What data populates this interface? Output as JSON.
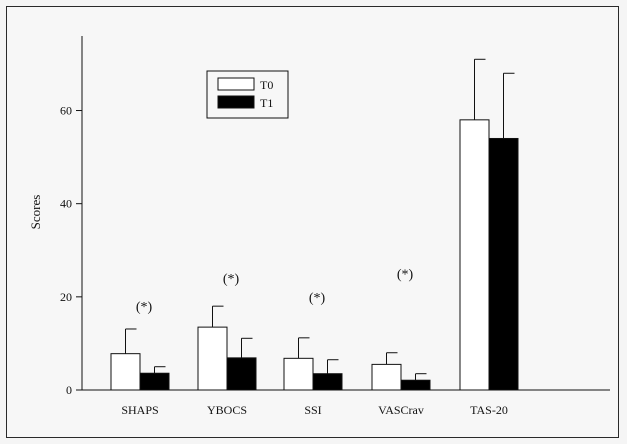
{
  "chart_data": {
    "type": "bar",
    "title": "",
    "xlabel": "",
    "ylabel": "Scores",
    "ylim": [
      0,
      76
    ],
    "yticks": [
      0,
      20,
      40,
      60
    ],
    "categories": [
      "SHAPS",
      "YBOCS",
      "SSI",
      "VASCrav",
      "TAS-20"
    ],
    "series": [
      {
        "name": "T0",
        "color": "#ffffff",
        "values": [
          7.8,
          13.5,
          6.8,
          5.5,
          58
        ],
        "errors": [
          5.3,
          4.5,
          4.4,
          2.5,
          13
        ]
      },
      {
        "name": "T1",
        "color": "#000000",
        "values": [
          3.6,
          6.9,
          3.5,
          2.1,
          54
        ],
        "errors": [
          1.4,
          4.2,
          3.0,
          1.4,
          14
        ]
      }
    ],
    "annotations": [
      {
        "category": "SHAPS",
        "text": "(*)",
        "y": 18
      },
      {
        "category": "YBOCS",
        "text": "(*)",
        "y": 24
      },
      {
        "category": "SSI",
        "text": "(*)",
        "y": 20
      },
      {
        "category": "VASCrav",
        "text": "(*)",
        "y": 25
      }
    ],
    "legend": {
      "position": "top-left",
      "entries": [
        "T0",
        "T1"
      ]
    },
    "grid": false
  }
}
